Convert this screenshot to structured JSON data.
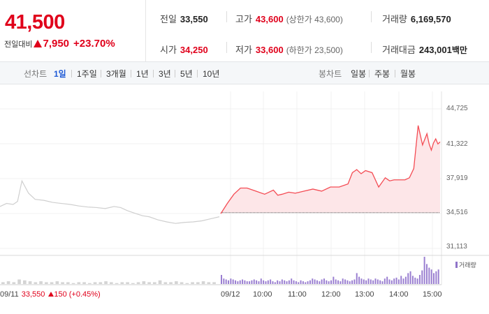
{
  "quote": {
    "price": "41,500",
    "change_label": "전일대비",
    "change_value": "7,950",
    "change_rate": "+23.70%"
  },
  "stats": {
    "prev_close": {
      "label": "전일",
      "value": "33,550"
    },
    "high": {
      "label": "고가",
      "value": "43,600",
      "extra": "(상한가 43,600)"
    },
    "volume": {
      "label": "거래량",
      "value": "6,169,570"
    },
    "open": {
      "label": "시가",
      "value": "34,250"
    },
    "low": {
      "label": "저가",
      "value": "33,600",
      "extra": "(하한가 23,500)"
    },
    "trade_amount": {
      "label": "거래대금",
      "value": "243,001",
      "unit": "백만"
    }
  },
  "line_chart": {
    "label": "선차트",
    "periods": [
      "1일",
      "1주일",
      "3개월",
      "1년",
      "3년",
      "5년",
      "10년"
    ],
    "selected": "1일"
  },
  "candle_chart": {
    "label": "봉차트",
    "periods": [
      "일봉",
      "주봉",
      "월봉"
    ]
  },
  "chart_data": {
    "type": "line",
    "y_ticks": [
      "44,725",
      "41,322",
      "37,919",
      "34,516",
      "31,113"
    ],
    "ylim": [
      31113,
      44725
    ],
    "baseline": 34600,
    "volume_legend": "거래량",
    "prev_day": {
      "date": "09/11",
      "close": "33,550",
      "change": "150",
      "rate": "(+0.45%)"
    },
    "x_ticks": [
      "09/12",
      "10:00",
      "11:00",
      "12:00",
      "13:00",
      "14:00",
      "15:00"
    ],
    "prev_series": {
      "name": "09/11",
      "color": "#cfcfcf",
      "x": [
        0,
        0.03,
        0.06,
        0.08,
        0.1,
        0.13,
        0.16,
        0.2,
        0.24,
        0.28,
        0.32,
        0.36,
        0.4,
        0.44,
        0.48,
        0.52,
        0.55,
        0.58,
        0.62,
        0.65,
        0.68,
        0.72,
        0.76,
        0.8,
        0.84,
        0.88,
        0.92,
        0.96,
        1.0
      ],
      "values": [
        35200,
        35500,
        35400,
        35700,
        37700,
        36500,
        35900,
        35800,
        35600,
        35500,
        35400,
        35250,
        35150,
        35100,
        35000,
        35200,
        35100,
        34800,
        34500,
        34300,
        34200,
        33900,
        33700,
        33550,
        33650,
        33700,
        33800,
        34000,
        34200
      ]
    },
    "today_series": {
      "name": "09/12",
      "color": "#f44c54",
      "x": [
        0,
        0.03,
        0.06,
        0.09,
        0.12,
        0.16,
        0.2,
        0.24,
        0.26,
        0.28,
        0.31,
        0.34,
        0.38,
        0.42,
        0.46,
        0.5,
        0.54,
        0.58,
        0.6,
        0.62,
        0.64,
        0.66,
        0.69,
        0.72,
        0.75,
        0.77,
        0.79,
        0.81,
        0.84,
        0.86,
        0.88,
        0.9,
        0.92,
        0.94,
        0.95,
        0.96,
        0.97,
        0.98,
        0.99,
        1.0
      ],
      "values": [
        34500,
        35500,
        36400,
        37000,
        37000,
        36700,
        36400,
        36800,
        36300,
        36400,
        36600,
        36500,
        36700,
        36900,
        36700,
        37100,
        37100,
        37400,
        38500,
        38800,
        38400,
        38700,
        38500,
        37100,
        38000,
        37700,
        37800,
        37800,
        37800,
        38000,
        38900,
        43100,
        41200,
        42300,
        41300,
        40700,
        41400,
        41800,
        41300,
        41500
      ]
    },
    "volume_prev": [
      2,
      3,
      2,
      5,
      4,
      3,
      2,
      3,
      2,
      2,
      3,
      2,
      2,
      1,
      2,
      2,
      1,
      2,
      2,
      3,
      2,
      1,
      2,
      2,
      1,
      2,
      3,
      2,
      2,
      4,
      2,
      2,
      3,
      2,
      1,
      2,
      2,
      3,
      2,
      2
    ],
    "volume_today": [
      10,
      6,
      5,
      4,
      6,
      5,
      4,
      3,
      4,
      5,
      4,
      3,
      3,
      4,
      5,
      4,
      3,
      6,
      4,
      3,
      4,
      5,
      3,
      2,
      4,
      3,
      5,
      4,
      3,
      4,
      6,
      4,
      3,
      2,
      4,
      3,
      2,
      3,
      4,
      6,
      5,
      4,
      3,
      5,
      6,
      4,
      3,
      4,
      8,
      5,
      4,
      3,
      6,
      5,
      4,
      3,
      4,
      5,
      12,
      8,
      6,
      5,
      4,
      6,
      5,
      4,
      6,
      5,
      4,
      3,
      6,
      8,
      5,
      4,
      6,
      7,
      5,
      9,
      6,
      8,
      12,
      14,
      9,
      7,
      6,
      10,
      15,
      30,
      22,
      18,
      16,
      12,
      14,
      16
    ]
  }
}
